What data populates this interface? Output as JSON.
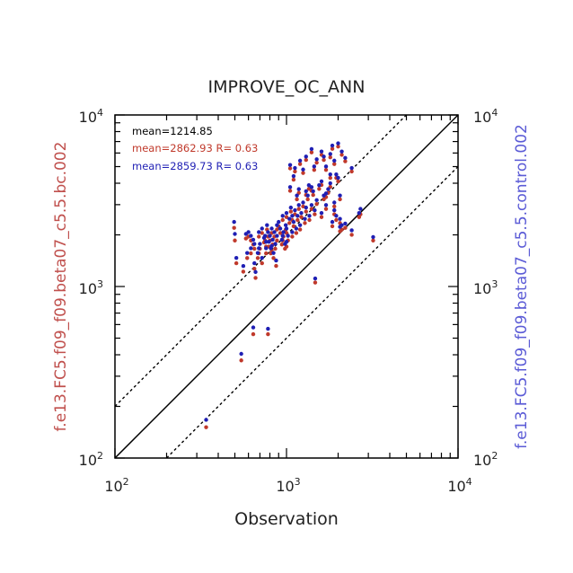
{
  "chart_data": {
    "type": "scatter",
    "title": "IMPROVE_OC_ANN",
    "xlabel": "Observation",
    "ylabel_left": "f.e13.FC5.f09_f09.beta07_c5.5.bc.002",
    "ylabel_right": "f.e13.FC5.f09_f09.beta07_c5.5.control.002",
    "xscale": "log",
    "yscale": "log",
    "xlim": [
      100,
      10000
    ],
    "ylim": [
      100,
      10000
    ],
    "ticks": [
      {
        "value": 100,
        "base": "10",
        "exp": "2"
      },
      {
        "value": 1000,
        "base": "10",
        "exp": "3"
      },
      {
        "value": 10000,
        "base": "10",
        "exp": "4"
      }
    ],
    "reference_lines": [
      {
        "name": "1:1",
        "factor": 1,
        "style": "solid"
      },
      {
        "name": "2:1",
        "factor": 2,
        "style": "dashed"
      },
      {
        "name": "1:2",
        "factor": 0.5,
        "style": "dashed"
      }
    ],
    "annotations": [
      {
        "text": "mean=1214.85",
        "color": "#000000"
      },
      {
        "text": "mean=2862.93 R= 0.63",
        "color": "#c0392b"
      },
      {
        "text": "mean=2859.73 R= 0.63",
        "color": "#1f1fb4"
      }
    ],
    "series": [
      {
        "color": "#c0392b",
        "points": [
          [
            340,
            155
          ],
          [
            545,
            380
          ],
          [
            640,
            540
          ],
          [
            780,
            540
          ],
          [
            1470,
            1080
          ],
          [
            3200,
            1900
          ],
          [
            2700,
            2700
          ],
          [
            2650,
            2600
          ],
          [
            2400,
            2050
          ],
          [
            2200,
            2250
          ],
          [
            2050,
            2150
          ],
          [
            495,
            2250
          ],
          [
            500,
            1900
          ],
          [
            510,
            1400
          ],
          [
            560,
            1250
          ],
          [
            580,
            1950
          ],
          [
            600,
            2000
          ],
          [
            620,
            1600
          ],
          [
            640,
            1800
          ],
          [
            650,
            1300
          ],
          [
            660,
            1150
          ],
          [
            680,
            1500
          ],
          [
            690,
            2000
          ],
          [
            700,
            1700
          ],
          [
            720,
            1400
          ],
          [
            740,
            1850
          ],
          [
            750,
            1900
          ],
          [
            760,
            1600
          ],
          [
            770,
            2200
          ],
          [
            780,
            2000
          ],
          [
            790,
            1750
          ],
          [
            800,
            1900
          ],
          [
            810,
            1600
          ],
          [
            820,
            2100
          ],
          [
            830,
            1800
          ],
          [
            840,
            1500
          ],
          [
            850,
            2000
          ],
          [
            860,
            1700
          ],
          [
            880,
            1900
          ],
          [
            900,
            2300
          ],
          [
            920,
            2100
          ],
          [
            940,
            1800
          ],
          [
            950,
            2500
          ],
          [
            960,
            2000
          ],
          [
            980,
            1700
          ],
          [
            990,
            2200
          ],
          [
            1000,
            2600
          ],
          [
            1020,
            1900
          ],
          [
            1040,
            2400
          ],
          [
            1060,
            2800
          ],
          [
            1080,
            2000
          ],
          [
            1100,
            2300
          ],
          [
            1120,
            2700
          ],
          [
            1140,
            2100
          ],
          [
            1160,
            2500
          ],
          [
            1180,
            2900
          ],
          [
            1200,
            2200
          ],
          [
            1220,
            2600
          ],
          [
            1250,
            3000
          ],
          [
            1280,
            2400
          ],
          [
            1300,
            2800
          ],
          [
            1330,
            3300
          ],
          [
            1360,
            2500
          ],
          [
            1400,
            2900
          ],
          [
            1430,
            3500
          ],
          [
            1460,
            2700
          ],
          [
            1500,
            3100
          ],
          [
            1550,
            3800
          ],
          [
            1600,
            2600
          ],
          [
            1650,
            3300
          ],
          [
            1700,
            2900
          ],
          [
            1750,
            3600
          ],
          [
            1800,
            4400
          ],
          [
            1850,
            2300
          ],
          [
            1900,
            3000
          ],
          [
            1950,
            2500
          ],
          [
            2000,
            4200
          ],
          [
            2050,
            3300
          ],
          [
            1050,
            3700
          ],
          [
            1100,
            4300
          ],
          [
            1150,
            3300
          ],
          [
            1200,
            5300
          ],
          [
            1250,
            4700
          ],
          [
            1300,
            5600
          ],
          [
            1350,
            3800
          ],
          [
            1400,
            6200
          ],
          [
            1450,
            4900
          ],
          [
            1500,
            5400
          ],
          [
            1600,
            6000
          ],
          [
            1650,
            5600
          ],
          [
            1700,
            4900
          ],
          [
            1800,
            5800
          ],
          [
            1850,
            6500
          ],
          [
            1900,
            5300
          ],
          [
            1950,
            4400
          ],
          [
            2000,
            6700
          ],
          [
            2100,
            6000
          ],
          [
            2200,
            5500
          ],
          [
            2400,
            4800
          ],
          [
            1120,
            4800
          ],
          [
            1050,
            5000
          ],
          [
            1180,
            3600
          ],
          [
            1300,
            3500
          ],
          [
            1400,
            3700
          ],
          [
            1600,
            4000
          ],
          [
            1700,
            3400
          ],
          [
            1800,
            3900
          ],
          [
            1900,
            2700
          ],
          [
            2050,
            2400
          ],
          [
            2100,
            2200
          ],
          [
            1000,
            2100
          ],
          [
            950,
            1900
          ],
          [
            880,
            2200
          ],
          [
            820,
            1650
          ],
          [
            760,
            1750
          ],
          [
            720,
            2100
          ],
          [
            690,
            1600
          ],
          [
            650,
            1700
          ],
          [
            620,
            1900
          ],
          [
            590,
            1500
          ],
          [
            870,
            1350
          ],
          [
            1000,
            1750
          ],
          [
            1080,
            2500
          ]
        ]
      },
      {
        "color": "#1f1fb4",
        "points": [
          [
            340,
            165
          ],
          [
            545,
            400
          ],
          [
            640,
            570
          ],
          [
            780,
            560
          ],
          [
            1470,
            1100
          ],
          [
            3200,
            1920
          ],
          [
            2700,
            2800
          ],
          [
            2650,
            2650
          ],
          [
            2400,
            2100
          ],
          [
            2200,
            2300
          ],
          [
            2050,
            2200
          ],
          [
            495,
            2350
          ],
          [
            500,
            2000
          ],
          [
            510,
            1450
          ],
          [
            560,
            1300
          ],
          [
            580,
            2000
          ],
          [
            600,
            2050
          ],
          [
            620,
            1650
          ],
          [
            640,
            1850
          ],
          [
            650,
            1350
          ],
          [
            660,
            1200
          ],
          [
            680,
            1550
          ],
          [
            690,
            2050
          ],
          [
            700,
            1750
          ],
          [
            720,
            1450
          ],
          [
            740,
            1900
          ],
          [
            750,
            1950
          ],
          [
            760,
            1650
          ],
          [
            770,
            2250
          ],
          [
            780,
            2050
          ],
          [
            790,
            1800
          ],
          [
            800,
            1950
          ],
          [
            810,
            1650
          ],
          [
            820,
            2150
          ],
          [
            830,
            1850
          ],
          [
            840,
            1550
          ],
          [
            850,
            2050
          ],
          [
            860,
            1750
          ],
          [
            880,
            1950
          ],
          [
            900,
            2350
          ],
          [
            920,
            2150
          ],
          [
            940,
            1850
          ],
          [
            950,
            2550
          ],
          [
            960,
            2050
          ],
          [
            980,
            1750
          ],
          [
            990,
            2250
          ],
          [
            1000,
            2650
          ],
          [
            1020,
            1950
          ],
          [
            1040,
            2450
          ],
          [
            1060,
            2850
          ],
          [
            1080,
            2050
          ],
          [
            1100,
            2350
          ],
          [
            1120,
            2750
          ],
          [
            1140,
            2150
          ],
          [
            1160,
            2550
          ],
          [
            1180,
            2950
          ],
          [
            1200,
            2250
          ],
          [
            1220,
            2650
          ],
          [
            1250,
            3050
          ],
          [
            1280,
            2450
          ],
          [
            1300,
            2850
          ],
          [
            1330,
            3350
          ],
          [
            1360,
            2550
          ],
          [
            1400,
            2950
          ],
          [
            1430,
            3550
          ],
          [
            1460,
            2750
          ],
          [
            1500,
            3150
          ],
          [
            1550,
            3850
          ],
          [
            1600,
            2650
          ],
          [
            1650,
            3350
          ],
          [
            1700,
            2950
          ],
          [
            1750,
            3650
          ],
          [
            1800,
            4450
          ],
          [
            1850,
            2350
          ],
          [
            1900,
            3050
          ],
          [
            1950,
            2550
          ],
          [
            2000,
            4250
          ],
          [
            2050,
            3350
          ],
          [
            1050,
            3750
          ],
          [
            1100,
            4350
          ],
          [
            1150,
            3350
          ],
          [
            1200,
            5350
          ],
          [
            1250,
            4750
          ],
          [
            1300,
            5650
          ],
          [
            1350,
            3850
          ],
          [
            1400,
            6250
          ],
          [
            1450,
            4950
          ],
          [
            1500,
            5450
          ],
          [
            1600,
            6050
          ],
          [
            1650,
            5650
          ],
          [
            1700,
            4950
          ],
          [
            1800,
            5850
          ],
          [
            1850,
            6550
          ],
          [
            1900,
            5350
          ],
          [
            1950,
            4450
          ],
          [
            2000,
            6750
          ],
          [
            2100,
            6050
          ],
          [
            2200,
            5550
          ],
          [
            2400,
            4850
          ],
          [
            1120,
            4850
          ],
          [
            1050,
            5050
          ],
          [
            1180,
            3650
          ],
          [
            1300,
            3550
          ],
          [
            1400,
            3750
          ],
          [
            1600,
            4050
          ],
          [
            1700,
            3450
          ],
          [
            1800,
            3950
          ],
          [
            1900,
            2750
          ],
          [
            2050,
            2450
          ],
          [
            2100,
            2250
          ],
          [
            1000,
            2150
          ],
          [
            950,
            1950
          ],
          [
            880,
            2250
          ],
          [
            820,
            1700
          ],
          [
            760,
            1800
          ],
          [
            720,
            2150
          ],
          [
            690,
            1650
          ],
          [
            650,
            1750
          ],
          [
            620,
            1950
          ],
          [
            590,
            1550
          ],
          [
            870,
            1400
          ],
          [
            1000,
            1800
          ],
          [
            1080,
            2550
          ]
        ]
      }
    ]
  }
}
